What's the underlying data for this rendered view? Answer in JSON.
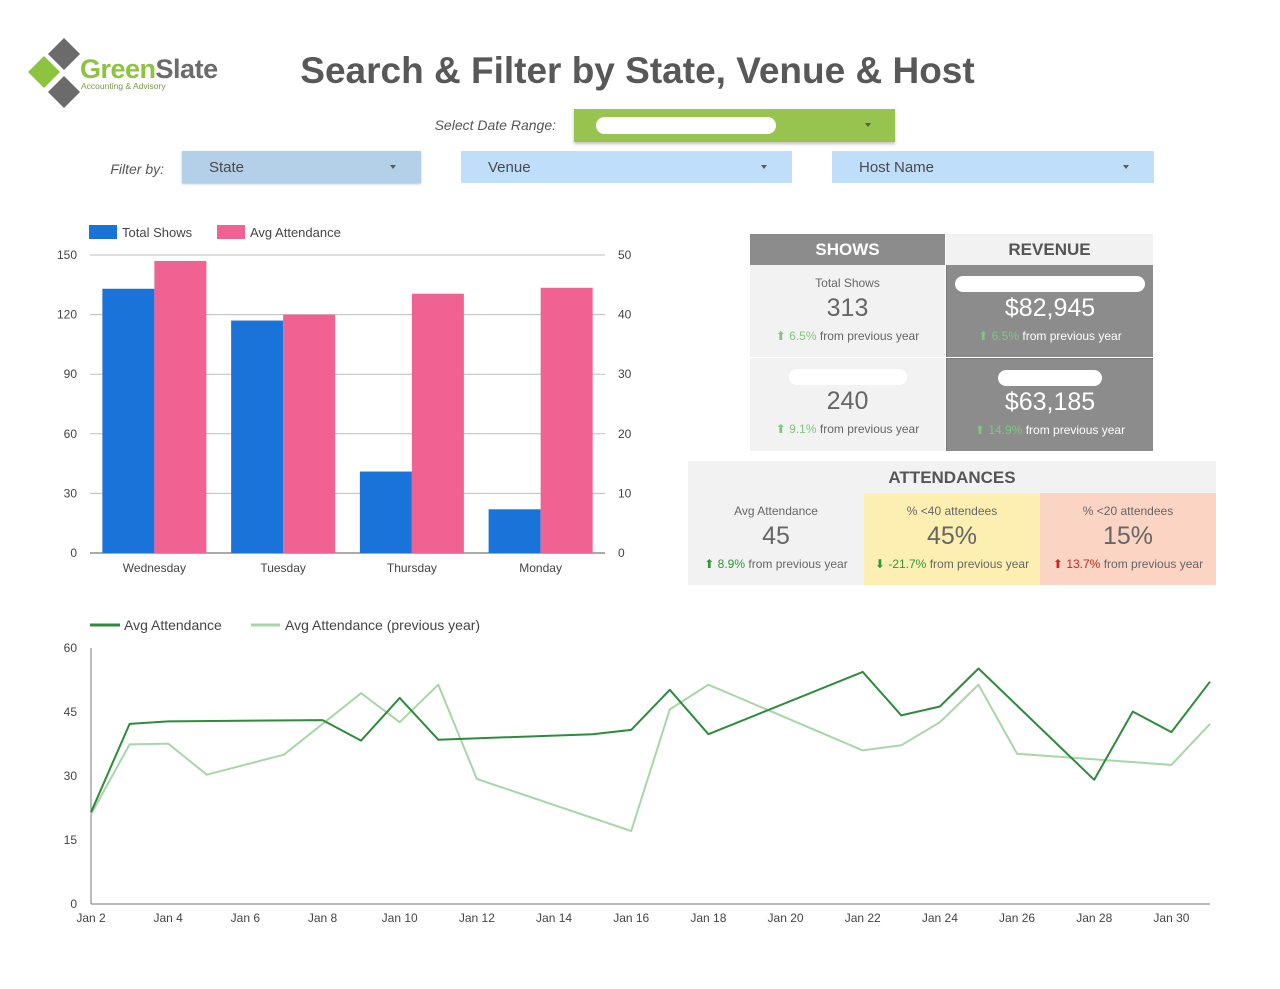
{
  "header": {
    "logo_text_green": "Green",
    "logo_text_slate": "Slate",
    "logo_subtitle": "Accounting & Advisory",
    "title": "Search & Filter by State, Venue & Host"
  },
  "filters": {
    "date_label": "Select Date Range:",
    "filter_label": "Filter by:",
    "state": "State",
    "venue": "Venue",
    "host": "Host Name"
  },
  "colors": {
    "total_shows": "#1a73d8",
    "avg_attendance": "#f06292",
    "line_current": "#2e8b3e",
    "line_previous": "#a8d6a8",
    "date_range": "#97c44f"
  },
  "shows": {
    "header": "SHOWS",
    "total_label": "Total Shows",
    "total_value": "313",
    "total_delta": "6.5%",
    "second_value": "240",
    "second_delta": "9.1%"
  },
  "revenue": {
    "header": "REVENUE",
    "total_value": "$82,945",
    "total_delta": "6.5%",
    "second_value": "$63,185",
    "second_delta": "14.9%"
  },
  "attendances": {
    "header": "ATTENDANCES",
    "avg_label": "Avg Attendance",
    "avg_value": "45",
    "avg_delta": "8.9%",
    "lt40_label": "% <40 attendees",
    "lt40_value": "45%",
    "lt40_delta": "-21.7%",
    "lt20_label": "% <20 attendees",
    "lt20_value": "15%",
    "lt20_delta": "13.7%"
  },
  "delta_suffix": "from previous year",
  "chart_data": [
    {
      "type": "bar",
      "categories": [
        "Wednesday",
        "Tuesday",
        "Thursday",
        "Monday"
      ],
      "series": [
        {
          "name": "Total Shows",
          "axis": "left",
          "values": [
            133,
            117,
            41,
            22
          ]
        },
        {
          "name": "Avg Attendance",
          "axis": "right",
          "values": [
            49,
            40,
            43.5,
            44.5
          ]
        }
      ],
      "left_ticks": [
        "0",
        "30",
        "60",
        "90",
        "120",
        "150"
      ],
      "right_ticks": [
        "0",
        "10",
        "20",
        "30",
        "40",
        "50"
      ],
      "ylim_left": [
        0,
        150
      ],
      "ylim_right": [
        0,
        50
      ],
      "legend": "top-left",
      "grid": true
    },
    {
      "type": "line",
      "x": [
        2,
        3,
        4,
        5,
        6,
        7,
        8,
        9,
        10,
        11,
        12,
        15,
        16,
        17,
        18,
        22,
        23,
        24,
        25,
        26,
        28,
        29,
        30,
        31
      ],
      "x_tick_labels": [
        "Jan 2",
        "Jan 4",
        "Jan 6",
        "Jan 8",
        "Jan 10",
        "Jan 12",
        "Jan 14",
        "Jan 16",
        "Jan 18",
        "Jan 20",
        "Jan 22",
        "Jan 24",
        "Jan 26",
        "Jan 28",
        "Jan 30"
      ],
      "x_ticks": [
        2,
        4,
        6,
        8,
        10,
        12,
        14,
        16,
        18,
        20,
        22,
        24,
        26,
        28,
        30
      ],
      "series": [
        {
          "name": "Avg Attendance",
          "x": [
            2,
            3,
            4,
            8,
            9,
            10,
            11,
            15,
            16,
            17,
            18,
            22,
            23,
            24,
            25,
            28,
            29,
            30,
            31
          ],
          "values": [
            21.5,
            42.2,
            42.8,
            43.1,
            38.3,
            48.3,
            38.5,
            39.8,
            40.8,
            50.2,
            39.8,
            54.4,
            44.2,
            46.3,
            55.2,
            29.1,
            45.1,
            40.3,
            52.1
          ]
        },
        {
          "name": "Avg Attendance (previous year)",
          "x": [
            2,
            3,
            4,
            5,
            7,
            9,
            10,
            11,
            12,
            16,
            17,
            18,
            22,
            23,
            24,
            25,
            26,
            30,
            31
          ],
          "values": [
            21,
            37.4,
            37.6,
            30.3,
            35,
            49.4,
            42.6,
            51.4,
            29.3,
            17.1,
            45.6,
            51.4,
            36,
            37.2,
            42.6,
            51.4,
            35.2,
            32.6,
            42.2
          ]
        }
      ],
      "y_ticks": [
        "0",
        "15",
        "30",
        "45",
        "60"
      ],
      "ylim": [
        0,
        60
      ],
      "xlim": [
        2,
        31
      ],
      "legend": "top-left"
    }
  ]
}
